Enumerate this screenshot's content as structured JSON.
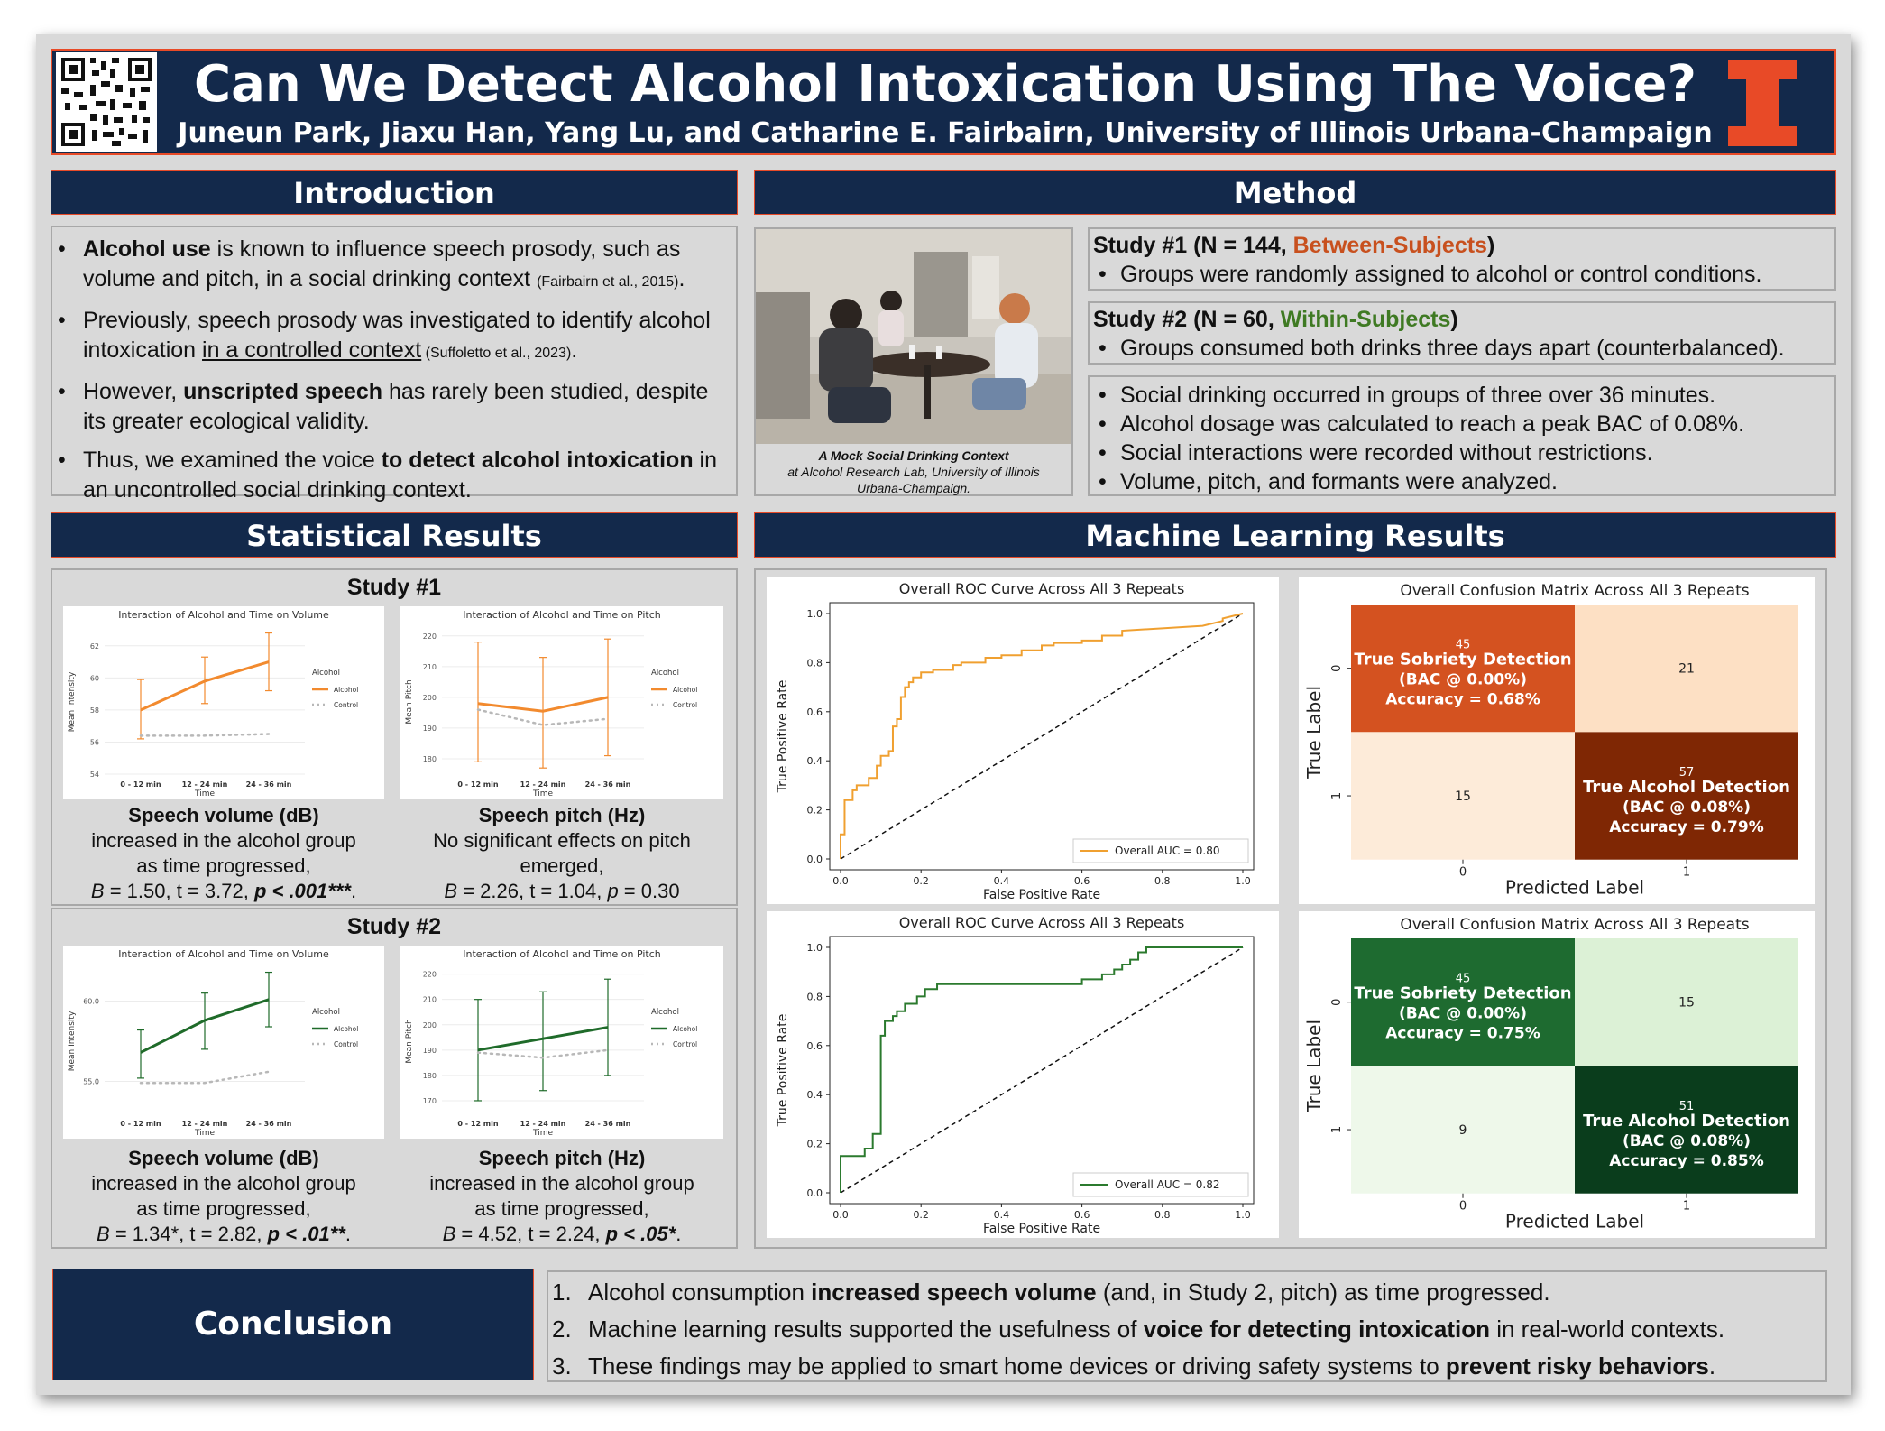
{
  "header": {
    "title": "Can We Detect Alcohol Intoxication Using The Voice?",
    "authors": "Juneun Park, Jiaxu Han, Yang Lu, and Catharine E. Fairbairn, University of Illinois Urbana-Champaign",
    "logo_letter": "I",
    "qr_icon": "qr-code-icon"
  },
  "introduction": {
    "heading": "Introduction",
    "bullets": [
      {
        "b": "Alcohol use",
        "t": " is known to influence speech prosody, such as volume and pitch, in a social drinking context ",
        "cite": "(Fairbairn et al., 2015)",
        "end": "."
      },
      {
        "t": "Previously, speech prosody was investigated to identify alcohol intoxication ",
        "u": "in a controlled context",
        "cite": " (Suffoletto et al., 2023)",
        "end": "."
      },
      {
        "t": "However, ",
        "b": "unscripted speech",
        "t2": " has rarely been studied, despite its greater ecological validity."
      },
      {
        "t": "Thus, we examined the voice ",
        "b": "to detect alcohol intoxication",
        "t2": " in an uncontrolled social drinking context."
      }
    ]
  },
  "method": {
    "heading": "Method",
    "photo_caption_1": "A Mock Social Drinking Context",
    "photo_caption_2": "at Alcohol Research Lab, University of Illinois Urbana-Champaign.",
    "study1_label": "Study #1 (N = 144, ",
    "study1_design": "Between-Subjects",
    "study1_close": ")",
    "study1_bullet": "Groups were randomly assigned to alcohol or control conditions.",
    "study2_label": "Study #2 (N = 60, ",
    "study2_design": "Within-Subjects",
    "study2_close": ")",
    "study2_bullet": "Groups consumed both drinks three days apart (counterbalanced).",
    "common_bullets": [
      "Social drinking occurred in groups of three over 36 minutes.",
      "Alcohol dosage was calculated to reach a peak BAC of 0.08%.",
      "Social interactions were recorded without restrictions.",
      "Volume, pitch, and formants were analyzed."
    ]
  },
  "stats": {
    "heading": "Statistical Results",
    "study1": {
      "title": "Study #1",
      "vol_head": "Speech volume (dB)",
      "vol_l1": "increased in the alcohol group",
      "vol_l2": "as time progressed,",
      "vol_B": "B",
      "vol_stat": " = 1.50, t = 3.72, ",
      "vol_p": "p < .001***",
      "pitch_head": "Speech pitch (Hz)",
      "pitch_l1": "No significant effects on pitch",
      "pitch_l2": "emerged,",
      "pitch_B": "B",
      "pitch_stat": " = 2.26, t = 1.04, ",
      "pitch_p": "p",
      "pitch_pv": " = 0.30"
    },
    "study2": {
      "title": "Study #2",
      "vol_head": "Speech volume (dB)",
      "vol_l1": "increased in the alcohol group",
      "vol_l2": "as time progressed,",
      "vol_B": "B",
      "vol_stat": " = 1.34*, t = 2.82, ",
      "vol_p": "p < .01**",
      "pitch_head": "Speech pitch (Hz)",
      "pitch_l1": "increased in the alcohol group",
      "pitch_l2": "as time progressed,",
      "pitch_B": "B",
      "pitch_stat": " = 4.52, t = 2.24, ",
      "pitch_p": "p < .05*"
    }
  },
  "ml": {
    "heading": "Machine Learning Results"
  },
  "conclusion": {
    "heading": "Conclusion",
    "items": [
      {
        "n": "1.",
        "t": "Alcohol consumption ",
        "b": "increased speech volume",
        "t2": " (and, in Study 2, pitch) as time progressed."
      },
      {
        "n": "2.",
        "t": "Machine learning results supported the usefulness of ",
        "b": "voice for detecting intoxication",
        "t2": " in real-world contexts."
      },
      {
        "n": "3.",
        "t": "These findings may be applied to smart home devices or driving safety systems to ",
        "b": "prevent risky behaviors",
        "t2": "."
      }
    ]
  },
  "chart_data": [
    {
      "id": "s1-volume",
      "type": "line",
      "title": "Interaction of Alcohol and Time on Volume",
      "xlabel": "Time",
      "ylabel": "Mean Intensity",
      "categories": [
        "0 - 12 min",
        "12 - 24 min",
        "24 - 36 min"
      ],
      "ylim": [
        54,
        63
      ],
      "yticks": [
        54,
        56,
        58,
        60,
        62
      ],
      "legend_title": "Alcohol",
      "series": [
        {
          "name": "Alcohol",
          "values": [
            58.0,
            59.8,
            61.0
          ],
          "err": [
            [
              56.2,
              59.9
            ],
            [
              58.4,
              61.3
            ],
            [
              59.2,
              62.8
            ]
          ]
        },
        {
          "name": "Control",
          "values": [
            56.4,
            56.4,
            56.5
          ]
        }
      ],
      "color": "#f28a2e"
    },
    {
      "id": "s1-pitch",
      "type": "line",
      "title": "Interaction of Alcohol and Time on Pitch",
      "xlabel": "Time",
      "ylabel": "Mean Pitch",
      "categories": [
        "0 - 12 min",
        "12 - 24 min",
        "24 - 36 min"
      ],
      "ylim": [
        175,
        222
      ],
      "yticks": [
        180,
        190,
        200,
        210,
        220
      ],
      "legend_title": "Alcohol",
      "series": [
        {
          "name": "Alcohol",
          "values": [
            198,
            195.5,
            200
          ],
          "err": [
            [
              179,
              218
            ],
            [
              177,
              213
            ],
            [
              181,
              219
            ]
          ]
        },
        {
          "name": "Control",
          "values": [
            196,
            191,
            193
          ]
        }
      ],
      "color": "#f28a2e"
    },
    {
      "id": "s2-volume",
      "type": "line",
      "title": "Interaction of Alcohol and Time on Volume",
      "xlabel": "Time",
      "ylabel": "Mean Intensity",
      "categories": [
        "0 - 12 min",
        "12 - 24 min",
        "24 - 36 min"
      ],
      "ylim": [
        53,
        62
      ],
      "yticks": [
        55.0,
        60.0
      ],
      "ytick_labels": [
        "55.0",
        "60.0"
      ],
      "legend_title": "Alcohol",
      "series": [
        {
          "name": "Alcohol",
          "values": [
            56.8,
            58.8,
            60.1
          ],
          "err": [
            [
              55.2,
              58.2
            ],
            [
              57.0,
              60.5
            ],
            [
              58.4,
              61.8
            ]
          ]
        },
        {
          "name": "Control",
          "values": [
            54.9,
            54.9,
            55.6
          ]
        }
      ],
      "color": "#1f6b2a"
    },
    {
      "id": "s2-pitch",
      "type": "line",
      "title": "Interaction of Alcohol and Time on Pitch",
      "xlabel": "Time",
      "ylabel": "Mean Pitch",
      "categories": [
        "0 - 12 min",
        "12 - 24 min",
        "24 - 36 min"
      ],
      "ylim": [
        165,
        222
      ],
      "yticks": [
        170,
        180,
        190,
        200,
        210,
        220
      ],
      "legend_title": "Alcohol",
      "series": [
        {
          "name": "Alcohol",
          "values": [
            190,
            194.5,
            199
          ],
          "err": [
            [
              170,
              210
            ],
            [
              174,
              213
            ],
            [
              180,
              218
            ]
          ]
        },
        {
          "name": "Control",
          "values": [
            189,
            187,
            190
          ]
        }
      ],
      "color": "#1f6b2a"
    },
    {
      "id": "roc1",
      "type": "line",
      "title": "Overall ROC Curve Across All 3 Repeats",
      "xlabel": "False Positive Rate",
      "ylabel": "True Positive Rate",
      "xlim": [
        0,
        1
      ],
      "ylim": [
        0,
        1
      ],
      "ticks": [
        0.0,
        0.2,
        0.4,
        0.6,
        0.8,
        1.0
      ],
      "legend": "Overall AUC = 0.80",
      "color": "#f0a030",
      "fpr": [
        0,
        0,
        0.01,
        0.01,
        0.03,
        0.03,
        0.04,
        0.04,
        0.07,
        0.07,
        0.09,
        0.09,
        0.1,
        0.1,
        0.12,
        0.12,
        0.13,
        0.13,
        0.14,
        0.14,
        0.15,
        0.15,
        0.16,
        0.16,
        0.17,
        0.17,
        0.18,
        0.18,
        0.2,
        0.2,
        0.23,
        0.23,
        0.28,
        0.28,
        0.3,
        0.3,
        0.36,
        0.36,
        0.4,
        0.4,
        0.45,
        0.45,
        0.5,
        0.5,
        0.53,
        0.53,
        0.6,
        0.6,
        0.65,
        0.65,
        0.7,
        0.7,
        0.8,
        0.9,
        0.95,
        0.95,
        1.0
      ],
      "tpr": [
        0,
        0.1,
        0.1,
        0.24,
        0.24,
        0.28,
        0.28,
        0.3,
        0.3,
        0.33,
        0.33,
        0.38,
        0.38,
        0.42,
        0.42,
        0.44,
        0.44,
        0.54,
        0.54,
        0.57,
        0.57,
        0.66,
        0.66,
        0.7,
        0.7,
        0.72,
        0.72,
        0.74,
        0.74,
        0.76,
        0.76,
        0.77,
        0.77,
        0.79,
        0.79,
        0.8,
        0.8,
        0.82,
        0.82,
        0.83,
        0.83,
        0.85,
        0.85,
        0.87,
        0.87,
        0.88,
        0.88,
        0.89,
        0.89,
        0.91,
        0.91,
        0.93,
        0.94,
        0.95,
        0.97,
        0.98,
        1.0
      ]
    },
    {
      "id": "cm1",
      "type": "heatmap",
      "title": "Overall Confusion Matrix Across All 3 Repeats",
      "xlabel": "Predicted Label",
      "ylabel": "True Label",
      "labels": [
        "0",
        "1"
      ],
      "values": [
        [
          45,
          21
        ],
        [
          15,
          57
        ]
      ],
      "annotations": [
        [
          "True Sobriety Detection",
          "(BAC @ 0.00%)",
          "Accuracy = 0.68%"
        ],
        [
          "True Alcohol Detection",
          "(BAC @ 0.08%)",
          "Accuracy = 0.79%"
        ]
      ],
      "colors": [
        [
          "#d45220",
          "#fde0c4"
        ],
        [
          "#fdebd9",
          "#7f2704"
        ]
      ]
    },
    {
      "id": "roc2",
      "type": "line",
      "title": "Overall ROC Curve Across All 3 Repeats",
      "xlabel": "False Positive Rate",
      "ylabel": "True Positive Rate",
      "xlim": [
        0,
        1
      ],
      "ylim": [
        0,
        1
      ],
      "ticks": [
        0.0,
        0.2,
        0.4,
        0.6,
        0.8,
        1.0
      ],
      "legend": "Overall AUC = 0.82",
      "color": "#2b7a2e",
      "fpr": [
        0,
        0,
        0.06,
        0.06,
        0.08,
        0.08,
        0.1,
        0.1,
        0.1,
        0.11,
        0.11,
        0.13,
        0.13,
        0.14,
        0.14,
        0.16,
        0.16,
        0.19,
        0.19,
        0.21,
        0.21,
        0.24,
        0.24,
        0.6,
        0.6,
        0.65,
        0.65,
        0.68,
        0.68,
        0.7,
        0.7,
        0.72,
        0.72,
        0.74,
        0.74,
        0.76,
        0.76,
        1.0
      ],
      "tpr": [
        0,
        0.15,
        0.15,
        0.18,
        0.18,
        0.24,
        0.24,
        0.6,
        0.64,
        0.64,
        0.7,
        0.7,
        0.72,
        0.72,
        0.74,
        0.74,
        0.77,
        0.77,
        0.8,
        0.8,
        0.83,
        0.83,
        0.85,
        0.85,
        0.87,
        0.87,
        0.89,
        0.89,
        0.91,
        0.91,
        0.93,
        0.93,
        0.95,
        0.95,
        0.98,
        0.98,
        1.0,
        1.0
      ]
    },
    {
      "id": "cm2",
      "type": "heatmap",
      "title": "Overall Confusion Matrix Across All 3 Repeats",
      "xlabel": "Predicted Label",
      "ylabel": "True Label",
      "labels": [
        "0",
        "1"
      ],
      "values": [
        [
          45,
          15
        ],
        [
          9,
          51
        ]
      ],
      "annotations": [
        [
          "True Sobriety Detection",
          "(BAC @ 0.00%)",
          "Accuracy = 0.75%"
        ],
        [
          "True Alcohol Detection",
          "(BAC @ 0.08%)",
          "Accuracy = 0.85%"
        ]
      ],
      "colors": [
        [
          "#1e6b30",
          "#dcf1d6"
        ],
        [
          "#eef8ea",
          "#0a3d1c"
        ]
      ]
    }
  ]
}
